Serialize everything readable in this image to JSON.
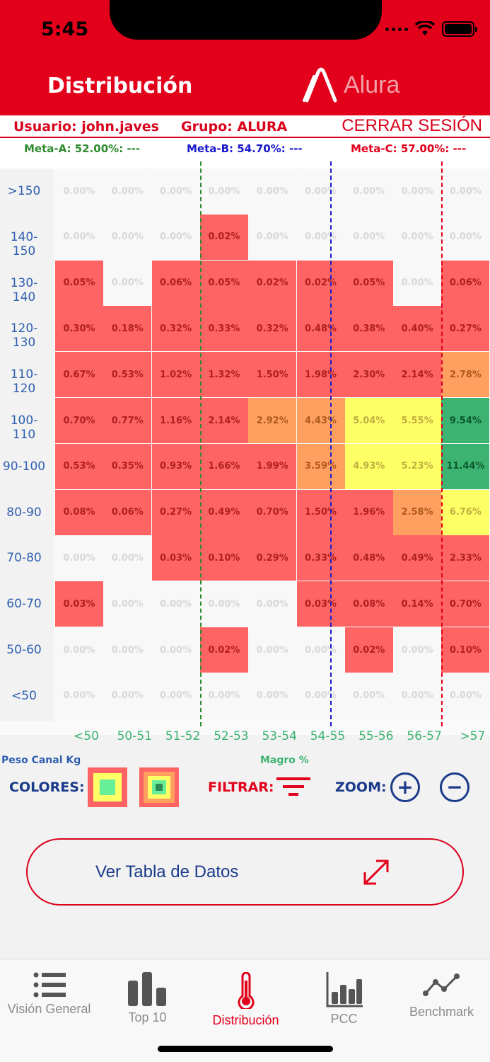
{
  "status_bar": {
    "time": "5:45"
  },
  "header": {
    "title": "Distribución",
    "logo_text": "Alura"
  },
  "user_bar": {
    "user": "Usuario: john.javes",
    "group": "Grupo: ALURA",
    "logout": "CERRAR SESIÓN"
  },
  "goals": {
    "meta_a": "Meta-A: 52.00%: ---",
    "meta_b": "Meta-B: 54.70%: ---",
    "meta_c": "Meta-C: 57.00%: ---",
    "color_a": "#2e8b2e",
    "color_b": "#1a1acc",
    "color_c": "#e2001a"
  },
  "chart_data": {
    "type": "heatmap",
    "xlabel": "Magro %",
    "ylabel": "Peso Canal Kg",
    "x_categories": [
      "<50",
      "50-51",
      "51-52",
      "52-53",
      "53-54",
      "54-55",
      "55-56",
      "56-57",
      ">57"
    ],
    "y_categories": [
      ">150",
      "140-150",
      "130-140",
      "120-130",
      "110-120",
      "100-110",
      "90-100",
      "80-90",
      "70-80",
      "60-70",
      "50-60",
      "<50"
    ],
    "values": [
      [
        "0.00%",
        "0.00%",
        "0.00%",
        "0.00%",
        "0.00%",
        "0.00%",
        "0.00%",
        "0.00%",
        "0.00%"
      ],
      [
        "0.00%",
        "0.00%",
        "0.00%",
        "0.02%",
        "0.00%",
        "0.00%",
        "0.00%",
        "0.00%",
        "0.00%"
      ],
      [
        "0.05%",
        "0.00%",
        "0.06%",
        "0.05%",
        "0.02%",
        "0.02%",
        "0.05%",
        "0.00%",
        "0.06%"
      ],
      [
        "0.30%",
        "0.18%",
        "0.32%",
        "0.33%",
        "0.32%",
        "0.48%",
        "0.38%",
        "0.40%",
        "0.27%"
      ],
      [
        "0.67%",
        "0.53%",
        "1.02%",
        "1.32%",
        "1.50%",
        "1.98%",
        "2.30%",
        "2.14%",
        "2.78%"
      ],
      [
        "0.70%",
        "0.77%",
        "1.16%",
        "2.14%",
        "2.92%",
        "4.43%",
        "5.04%",
        "5.55%",
        "9.54%"
      ],
      [
        "0.53%",
        "0.35%",
        "0.93%",
        "1.66%",
        "1.99%",
        "3.59%",
        "4.93%",
        "5.23%",
        "11.44%"
      ],
      [
        "0.08%",
        "0.06%",
        "0.27%",
        "0.49%",
        "0.70%",
        "1.50%",
        "1.96%",
        "2.58%",
        "6.76%"
      ],
      [
        "0.00%",
        "0.00%",
        "0.03%",
        "0.10%",
        "0.29%",
        "0.33%",
        "0.48%",
        "0.49%",
        "2.33%"
      ],
      [
        "0.03%",
        "0.00%",
        "0.00%",
        "0.00%",
        "0.00%",
        "0.03%",
        "0.08%",
        "0.14%",
        "0.70%"
      ],
      [
        "0.00%",
        "0.00%",
        "0.00%",
        "0.02%",
        "0.00%",
        "0.00%",
        "0.02%",
        "0.00%",
        "0.10%"
      ],
      [
        "0.00%",
        "0.00%",
        "0.00%",
        "0.00%",
        "0.00%",
        "0.00%",
        "0.00%",
        "0.00%",
        "0.00%"
      ]
    ],
    "colors": {
      "empty": "#f8f8f8",
      "low": "#ff6464",
      "mid": "#ffa060",
      "high": "#ffff66",
      "top": "#3cb371"
    },
    "goal_lines": [
      {
        "label": "Meta-A",
        "x": 52.0,
        "color": "#2e8b2e"
      },
      {
        "label": "Meta-B",
        "x": 54.7,
        "color": "#1a1acc"
      },
      {
        "label": "Meta-C",
        "x": 57.0,
        "color": "#e2001a"
      }
    ]
  },
  "controls": {
    "colors_label": "COLORES:",
    "filter_label": "FILTRAR:",
    "zoom_label": "ZOOM:",
    "zoom_in_icon": "plus-icon",
    "zoom_out_icon": "minus-icon"
  },
  "data_table_button": {
    "label": "Ver Tabla de Datos",
    "icon": "expand-arrows-icon"
  },
  "tabs": [
    {
      "label": "Visión General",
      "icon": "list-icon",
      "active": false
    },
    {
      "label": "Top 10",
      "icon": "bar-chart-icon",
      "active": false
    },
    {
      "label": "Distribución",
      "icon": "thermometer-icon",
      "active": true
    },
    {
      "label": "PCC",
      "icon": "column-chart-icon",
      "active": false
    },
    {
      "label": "Benchmark",
      "icon": "line-chart-icon",
      "active": false
    }
  ],
  "accent_color": "#e2001a"
}
